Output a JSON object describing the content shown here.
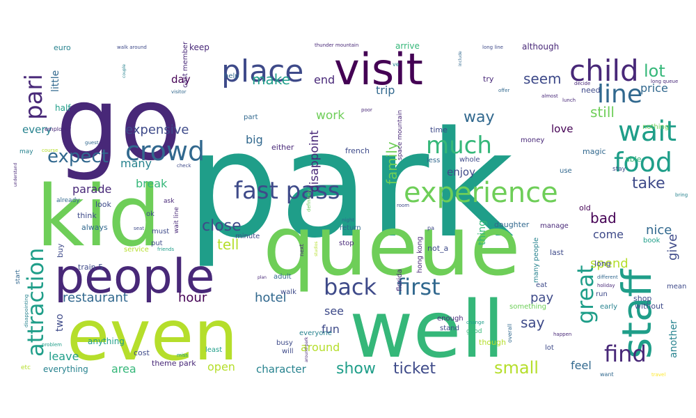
{
  "palette": {
    "dark_purple": "#440154",
    "purple": "#482878",
    "indigo": "#3e4a89",
    "blue": "#31688e",
    "teal_blue": "#26828e",
    "teal": "#1f9e89",
    "green": "#35b779",
    "light_green": "#6ece58",
    "lime": "#b5de2b",
    "yellow": "#fde725"
  },
  "words": [
    {
      "text": "park",
      "color": "teal"
    },
    {
      "text": "go",
      "color": "purple"
    },
    {
      "text": "queue",
      "color": "light_green"
    },
    {
      "text": "kid",
      "color": "light_green"
    },
    {
      "text": "even",
      "color": "lime"
    },
    {
      "text": "well",
      "color": "green"
    },
    {
      "text": "visit",
      "color": "dark_purple"
    },
    {
      "text": "people",
      "color": "purple"
    },
    {
      "text": "staff",
      "color": "teal"
    },
    {
      "text": "experience",
      "color": "light_green"
    },
    {
      "text": "wait",
      "color": "teal"
    },
    {
      "text": "place",
      "color": "indigo"
    },
    {
      "text": "child",
      "color": "purple"
    },
    {
      "text": "crowd",
      "color": "blue"
    },
    {
      "text": "food",
      "color": "teal"
    },
    {
      "text": "attraction",
      "color": "teal"
    },
    {
      "text": "fast pass",
      "color": "indigo"
    },
    {
      "text": "line",
      "color": "blue"
    },
    {
      "text": "much",
      "color": "green"
    },
    {
      "text": "back",
      "color": "indigo"
    },
    {
      "text": "first",
      "color": "blue"
    },
    {
      "text": "find",
      "color": "purple"
    },
    {
      "text": "pari",
      "color": "purple"
    },
    {
      "text": "great",
      "color": "teal"
    },
    {
      "text": "expect",
      "color": "blue"
    },
    {
      "text": "ticket",
      "color": "indigo"
    },
    {
      "text": "small",
      "color": "lime"
    },
    {
      "text": "show",
      "color": "teal"
    },
    {
      "text": "lot",
      "color": "green"
    },
    {
      "text": "make",
      "color": "teal"
    },
    {
      "text": "seem",
      "color": "indigo"
    },
    {
      "text": "still",
      "color": "light_green"
    },
    {
      "text": "way",
      "color": "blue"
    },
    {
      "text": "take",
      "color": "indigo"
    },
    {
      "text": "close",
      "color": "indigo"
    },
    {
      "text": "tell",
      "color": "lime"
    },
    {
      "text": "bad",
      "color": "dark_purple"
    },
    {
      "text": "family",
      "color": "light_green"
    },
    {
      "text": "restaurant",
      "color": "blue"
    },
    {
      "text": "expensive",
      "color": "indigo"
    },
    {
      "text": "say",
      "color": "indigo"
    },
    {
      "text": "give",
      "color": "indigo"
    },
    {
      "text": "nice",
      "color": "blue"
    },
    {
      "text": "spend",
      "color": "lime"
    },
    {
      "text": "hour",
      "color": "dark_purple"
    },
    {
      "text": "hotel",
      "color": "blue"
    },
    {
      "text": "pay",
      "color": "indigo"
    },
    {
      "text": "price",
      "color": "blue"
    },
    {
      "text": "end",
      "color": "purple"
    },
    {
      "text": "trip",
      "color": "blue"
    },
    {
      "text": "work",
      "color": "light_green"
    },
    {
      "text": "disappoint",
      "color": "purple"
    },
    {
      "text": "many",
      "color": "teal_blue"
    },
    {
      "text": "parade",
      "color": "purple"
    },
    {
      "text": "break",
      "color": "green"
    },
    {
      "text": "little",
      "color": "blue"
    },
    {
      "text": "every",
      "color": "teal_blue"
    },
    {
      "text": "day",
      "color": "dark_purple"
    },
    {
      "text": "big",
      "color": "blue"
    },
    {
      "text": "enjoy",
      "color": "indigo"
    },
    {
      "text": "come",
      "color": "indigo"
    },
    {
      "text": "love",
      "color": "dark_purple"
    },
    {
      "text": "see",
      "color": "indigo"
    },
    {
      "text": "fun",
      "color": "indigo"
    },
    {
      "text": "leave",
      "color": "teal"
    },
    {
      "text": "area",
      "color": "green"
    },
    {
      "text": "open",
      "color": "lime"
    },
    {
      "text": "character",
      "color": "teal_blue"
    },
    {
      "text": "around",
      "color": "lime"
    },
    {
      "text": "feel",
      "color": "blue"
    },
    {
      "text": "another",
      "color": "teal_blue"
    },
    {
      "text": "two",
      "color": "indigo"
    },
    {
      "text": "thing",
      "color": "green"
    },
    {
      "text": "half",
      "color": "teal"
    },
    {
      "text": "cast member",
      "color": "purple"
    },
    {
      "text": "everything",
      "color": "teal_blue"
    },
    {
      "text": "theme park",
      "color": "purple"
    },
    {
      "text": "anything",
      "color": "teal"
    },
    {
      "text": "although",
      "color": "purple"
    },
    {
      "text": "arrive",
      "color": "green"
    },
    {
      "text": "keep",
      "color": "purple"
    },
    {
      "text": "euro",
      "color": "teal_blue"
    },
    {
      "text": "walk around",
      "color": "indigo"
    },
    {
      "text": "thunder mountain",
      "color": "purple"
    },
    {
      "text": "long line",
      "color": "indigo"
    },
    {
      "text": "need",
      "color": "indigo"
    },
    {
      "text": "nothing",
      "color": "light_green"
    },
    {
      "text": "money",
      "color": "purple"
    },
    {
      "text": "magic",
      "color": "blue"
    },
    {
      "text": "able",
      "color": "green"
    },
    {
      "text": "use",
      "color": "blue"
    },
    {
      "text": "old",
      "color": "dark_purple"
    },
    {
      "text": "long",
      "color": "indigo"
    },
    {
      "text": "book",
      "color": "teal"
    },
    {
      "text": "last",
      "color": "indigo"
    },
    {
      "text": "time",
      "color": "indigo"
    },
    {
      "text": "try",
      "color": "purple"
    },
    {
      "text": "less",
      "color": "blue"
    },
    {
      "text": "whole",
      "color": "indigo"
    },
    {
      "text": "french",
      "color": "indigo"
    },
    {
      "text": "either",
      "color": "purple"
    },
    {
      "text": "part",
      "color": "blue"
    },
    {
      "text": "help",
      "color": "blue"
    },
    {
      "text": "space mountain",
      "color": "purple"
    },
    {
      "text": "hong kong",
      "color": "purple"
    },
    {
      "text": "not_a",
      "color": "indigo"
    },
    {
      "text": "florida",
      "color": "purple"
    },
    {
      "text": "stop",
      "color": "purple"
    },
    {
      "text": "return",
      "color": "blue"
    },
    {
      "text": "minute",
      "color": "indigo"
    },
    {
      "text": "wait line",
      "color": "purple"
    },
    {
      "text": "daughter",
      "color": "blue"
    },
    {
      "text": "manage",
      "color": "purple"
    },
    {
      "text": "many people",
      "color": "teal_blue"
    },
    {
      "text": "must",
      "color": "indigo"
    },
    {
      "text": "put",
      "color": "indigo"
    },
    {
      "text": "think",
      "color": "indigo"
    },
    {
      "text": "always",
      "color": "blue"
    },
    {
      "text": "look",
      "color": "indigo"
    },
    {
      "text": "already",
      "color": "blue"
    },
    {
      "text": "ask",
      "color": "purple"
    },
    {
      "text": "ok",
      "color": "indigo"
    },
    {
      "text": "buy",
      "color": "indigo"
    },
    {
      "text": "train 5",
      "color": "indigo"
    },
    {
      "text": "service",
      "color": "lime"
    },
    {
      "text": "adult",
      "color": "blue"
    },
    {
      "text": "walk",
      "color": "indigo"
    },
    {
      "text": "enough",
      "color": "purple"
    },
    {
      "text": "stand",
      "color": "indigo"
    },
    {
      "text": "something",
      "color": "light_green"
    },
    {
      "text": "busy",
      "color": "indigo"
    },
    {
      "text": "will",
      "color": "indigo"
    },
    {
      "text": "least",
      "color": "teal"
    },
    {
      "text": "everyone",
      "color": "teal_blue"
    },
    {
      "text": "though",
      "color": "lime"
    },
    {
      "text": "lot",
      "color": "indigo"
    },
    {
      "text": "eat",
      "color": "indigo"
    },
    {
      "text": "shop",
      "color": "indigo"
    },
    {
      "text": "early",
      "color": "teal_blue"
    },
    {
      "text": "without",
      "color": "indigo"
    },
    {
      "text": "run",
      "color": "indigo"
    },
    {
      "text": "mean",
      "color": "indigo"
    },
    {
      "text": "cost",
      "color": "indigo"
    },
    {
      "text": "start",
      "color": "blue"
    },
    {
      "text": "etc",
      "color": "lime"
    },
    {
      "text": "good",
      "color": "green"
    },
    {
      "text": "overall",
      "color": "blue"
    },
    {
      "text": "want",
      "color": "blue"
    },
    {
      "text": "travel",
      "color": "yellow"
    },
    {
      "text": "employer",
      "color": "purple"
    },
    {
      "text": "guest",
      "color": "blue"
    },
    {
      "text": "may",
      "color": "teal_blue"
    },
    {
      "text": "course",
      "color": "lime"
    },
    {
      "text": "visitor",
      "color": "blue"
    },
    {
      "text": "couple",
      "color": "teal_blue"
    },
    {
      "text": "seat",
      "color": "indigo"
    },
    {
      "text": "check",
      "color": "indigo"
    },
    {
      "text": "almost",
      "color": "purple"
    },
    {
      "text": "lunch",
      "color": "purple"
    },
    {
      "text": "decide",
      "color": "purple"
    },
    {
      "text": "offer",
      "color": "blue"
    },
    {
      "text": "poor",
      "color": "purple"
    },
    {
      "text": "ve",
      "color": "teal_blue"
    },
    {
      "text": "include",
      "color": "blue"
    },
    {
      "text": "long queue",
      "color": "purple"
    },
    {
      "text": "stay",
      "color": "indigo"
    },
    {
      "text": "bring",
      "color": "teal_blue"
    },
    {
      "text": "different",
      "color": "blue"
    },
    {
      "text": "holiday",
      "color": "purple"
    },
    {
      "text": "happen",
      "color": "purple"
    },
    {
      "text": "change",
      "color": "teal"
    },
    {
      "text": "friends",
      "color": "teal"
    },
    {
      "text": "plan",
      "color": "purple"
    },
    {
      "text": "next",
      "color": "purple"
    },
    {
      "text": "room",
      "color": "indigo"
    },
    {
      "text": "night",
      "color": "blue"
    },
    {
      "text": "definitely",
      "color": "light_green"
    },
    {
      "text": "problem",
      "color": "teal"
    },
    {
      "text": "disappointing",
      "color": "teal_blue"
    },
    {
      "text": "understand",
      "color": "purple"
    },
    {
      "text": "miss",
      "color": "teal"
    },
    {
      "text": "around park",
      "color": "purple"
    },
    {
      "text": "studios",
      "color": "lime"
    },
    {
      "text": "pa",
      "color": "indigo"
    }
  ]
}
